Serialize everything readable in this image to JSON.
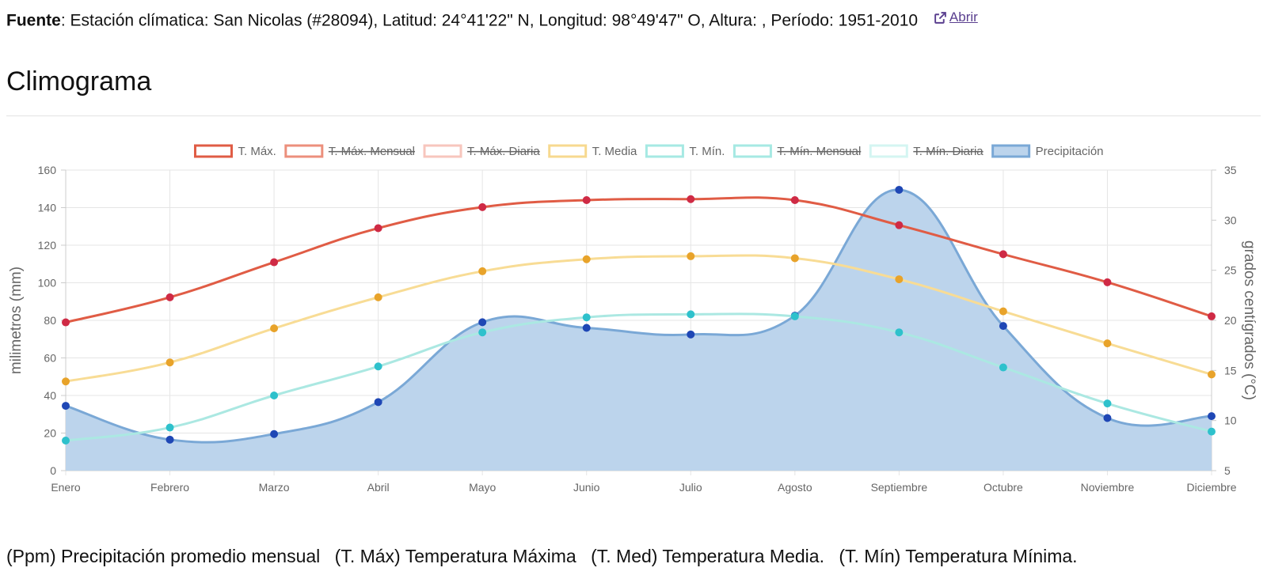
{
  "source": {
    "label": "Fuente",
    "text": ": Estación clímatica: San Nicolas (#28094), Latitud: 24°41'22\" N, Longitud: 98°49'47\" O, Altura: , Período: 1951-2010",
    "link_label": "Abrir"
  },
  "heading": "Climograma",
  "footnote": [
    "(Ppm) Precipitación promedio mensual",
    "(T. Máx) Temperatura Máxima",
    "(T. Med) Temperatura Media.",
    "(T. Mín) Temperatura Mínima."
  ],
  "chart_data": {
    "type": "line",
    "categories": [
      "Enero",
      "Febrero",
      "Marzo",
      "Abril",
      "Mayo",
      "Junio",
      "Julio",
      "Agosto",
      "Septiembre",
      "Octubre",
      "Noviembre",
      "Diciembre"
    ],
    "ylabel": "milimetros (mm)",
    "y2label": "grados centígrados (°C)",
    "ylim": [
      0,
      160
    ],
    "y2lim": [
      5,
      35
    ],
    "yticks": [
      0,
      20,
      40,
      60,
      80,
      100,
      120,
      140,
      160
    ],
    "y2ticks": [
      5,
      10,
      15,
      20,
      25,
      30,
      35
    ],
    "grid": true,
    "legend_position": "top",
    "legend": [
      {
        "name": "T. Máx.",
        "color": "#e05c45",
        "hidden": false
      },
      {
        "name": "T. Máx. Mensual",
        "color": "#ec8f7c",
        "hidden": true
      },
      {
        "name": "T. Máx. Diaria",
        "color": "#f7c6bd",
        "hidden": true
      },
      {
        "name": "T. Media",
        "color": "#f7d98f",
        "hidden": false
      },
      {
        "name": "T. Mín.",
        "color": "#a6e9e3",
        "hidden": false
      },
      {
        "name": "T. Mín. Mensual",
        "color": "#a6e9e3",
        "hidden": true
      },
      {
        "name": "T. Mín. Diaria",
        "color": "#d4f5f2",
        "hidden": true
      },
      {
        "name": "Precipitación",
        "color": "#7aa8d6",
        "hidden": false
      }
    ],
    "series": [
      {
        "name": "Precipitación",
        "axis": "left",
        "type": "area",
        "color": "#7aa8d6",
        "fill": "#bcd4ec",
        "point": "#1f47b5",
        "values": [
          34.5,
          16.5,
          19.5,
          36.5,
          79,
          76,
          72.5,
          82.5,
          149.5,
          77,
          28,
          29
        ]
      },
      {
        "name": "T. Mín.",
        "axis": "right",
        "type": "line",
        "color": "#abe8e2",
        "point": "#2ec1cc",
        "values": [
          8.0,
          9.3,
          12.5,
          15.4,
          18.8,
          20.3,
          20.6,
          20.4,
          18.8,
          15.3,
          11.7,
          8.9
        ]
      },
      {
        "name": "T. Media",
        "axis": "right",
        "type": "line",
        "color": "#f8dc95",
        "point": "#e8a32a",
        "values": [
          13.9,
          15.8,
          19.2,
          22.3,
          24.9,
          26.1,
          26.4,
          26.2,
          24.1,
          20.9,
          17.7,
          14.6
        ]
      },
      {
        "name": "T. Máx.",
        "axis": "right",
        "type": "line",
        "color": "#e05c45",
        "point": "#cf2a45",
        "values": [
          19.8,
          22.3,
          25.8,
          29.2,
          31.3,
          32.0,
          32.1,
          32.0,
          29.5,
          26.6,
          23.8,
          20.4
        ]
      }
    ]
  }
}
